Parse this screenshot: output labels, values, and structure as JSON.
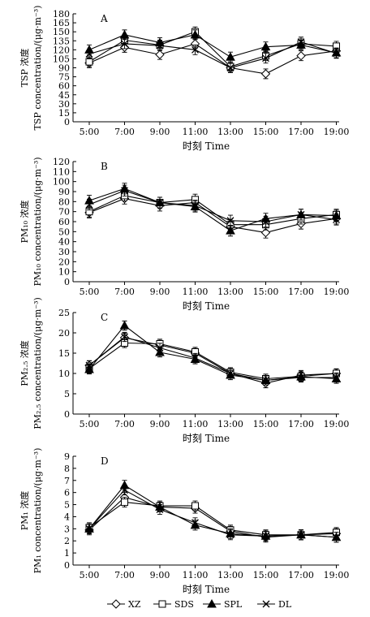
{
  "chart_data": [
    {
      "type": "line",
      "panel_label": "A",
      "x": [
        "5:00",
        "7:00",
        "9:00",
        "11:00",
        "13:00",
        "15:00",
        "17:00",
        "19:00"
      ],
      "xlabel": "时刻 Time",
      "ylabel_cn": "TSP 浓度",
      "ylabel_en": "TSP concentration/(μg·m⁻³)",
      "ylim": [
        0,
        180
      ],
      "yticks": [
        "0",
        "15",
        "30",
        "45",
        "60",
        "75",
        "90",
        "105",
        "120",
        "135",
        "150",
        "165",
        "180"
      ],
      "series": [
        {
          "name": "XZ",
          "marker": "diamond-open",
          "values": [
            98,
            124,
            112,
            130,
            90,
            80,
            110,
            118
          ]
        },
        {
          "name": "SDS",
          "marker": "square-open",
          "values": [
            100,
            136,
            128,
            150,
            92,
            110,
            130,
            126
          ]
        },
        {
          "name": "SPL",
          "marker": "triangle-filled",
          "values": [
            120,
            145,
            132,
            145,
            108,
            125,
            128,
            115
          ]
        },
        {
          "name": "DL",
          "marker": "x",
          "values": [
            113,
            130,
            127,
            120,
            90,
            106,
            133,
            114
          ]
        }
      ]
    },
    {
      "type": "line",
      "panel_label": "B",
      "x": [
        "5:00",
        "7:00",
        "9:00",
        "11:00",
        "13:00",
        "15:00",
        "17:00",
        "19:00"
      ],
      "xlabel": "时刻 Time",
      "ylabel_cn": "PM₁₀ 浓度",
      "ylabel_en": "PM₁₀ concentration/(μg·m⁻³)",
      "ylim": [
        0,
        120
      ],
      "yticks": [
        "0",
        "10",
        "20",
        "30",
        "40",
        "50",
        "60",
        "70",
        "80",
        "90",
        "100",
        "110",
        "120"
      ],
      "series": [
        {
          "name": "XZ",
          "marker": "diamond-open",
          "values": [
            69,
            83,
            76,
            79,
            55,
            49,
            58,
            63
          ]
        },
        {
          "name": "SDS",
          "marker": "square-open",
          "values": [
            70,
            86,
            79,
            82,
            57,
            57,
            63,
            67
          ]
        },
        {
          "name": "SPL",
          "marker": "triangle-filled",
          "values": [
            81,
            93,
            79,
            75,
            51,
            63,
            67,
            66
          ]
        },
        {
          "name": "DL",
          "marker": "x",
          "values": [
            77,
            91,
            79,
            76,
            61,
            60,
            67,
            62
          ]
        }
      ]
    },
    {
      "type": "line",
      "panel_label": "C",
      "x": [
        "5:00",
        "7:00",
        "9:00",
        "11:00",
        "13:00",
        "15:00",
        "17:00",
        "19:00"
      ],
      "xlabel": "时刻 Time",
      "ylabel_cn": "PM₂.₅ 浓度",
      "ylabel_en": "PM₂.₅ concentration/(μg·m⁻³)",
      "ylim": [
        0,
        25
      ],
      "yticks": [
        "0",
        "5",
        "10",
        "15",
        "20",
        "25"
      ],
      "series": [
        {
          "name": "XZ",
          "marker": "diamond-open",
          "values": [
            12.0,
            18.8,
            17.0,
            15.0,
            10.0,
            7.6,
            9.6,
            10.0
          ]
        },
        {
          "name": "SDS",
          "marker": "square-open",
          "values": [
            11.2,
            17.5,
            17.3,
            15.3,
            10.3,
            8.7,
            9.3,
            10.0
          ]
        },
        {
          "name": "SPL",
          "marker": "triangle-filled",
          "values": [
            11.0,
            21.8,
            15.2,
            13.5,
            9.6,
            8.3,
            9.2,
            8.7
          ]
        },
        {
          "name": "DL",
          "marker": "x",
          "values": [
            12.0,
            19.0,
            16.3,
            13.8,
            10.0,
            8.3,
            9.0,
            9.0
          ]
        }
      ]
    },
    {
      "type": "line",
      "panel_label": "D",
      "x": [
        "5:00",
        "7:00",
        "9:00",
        "11:00",
        "13:00",
        "15:00",
        "17:00",
        "19:00"
      ],
      "xlabel": "时刻 Time",
      "ylabel_cn": "PM₁ 浓度",
      "ylabel_en": "PM₁ concentration/(μg·m⁻³)",
      "ylim": [
        0,
        9
      ],
      "yticks": [
        "0",
        "1",
        "2",
        "3",
        "4",
        "5",
        "6",
        "7",
        "8",
        "9"
      ],
      "series": [
        {
          "name": "XZ",
          "marker": "diamond-open",
          "values": [
            2.9,
            5.6,
            4.8,
            4.7,
            2.8,
            2.3,
            2.5,
            2.6
          ]
        },
        {
          "name": "SDS",
          "marker": "square-open",
          "values": [
            3.1,
            5.2,
            4.9,
            4.9,
            2.9,
            2.5,
            2.5,
            2.7
          ]
        },
        {
          "name": "SPL",
          "marker": "triangle-filled",
          "values": [
            3.0,
            6.6,
            4.8,
            3.3,
            2.6,
            2.4,
            2.5,
            2.3
          ]
        },
        {
          "name": "DL",
          "marker": "x",
          "values": [
            3.0,
            6.2,
            4.6,
            3.5,
            2.5,
            2.4,
            2.5,
            2.3
          ]
        }
      ]
    }
  ],
  "legend": {
    "placement": "bottom-center",
    "items": [
      {
        "name": "XZ",
        "marker": "diamond-open"
      },
      {
        "name": "SDS",
        "marker": "square-open"
      },
      {
        "name": "SPL",
        "marker": "triangle-filled"
      },
      {
        "name": "DL",
        "marker": "x"
      }
    ]
  },
  "colors": {
    "line": "#000000",
    "background": "#ffffff"
  }
}
